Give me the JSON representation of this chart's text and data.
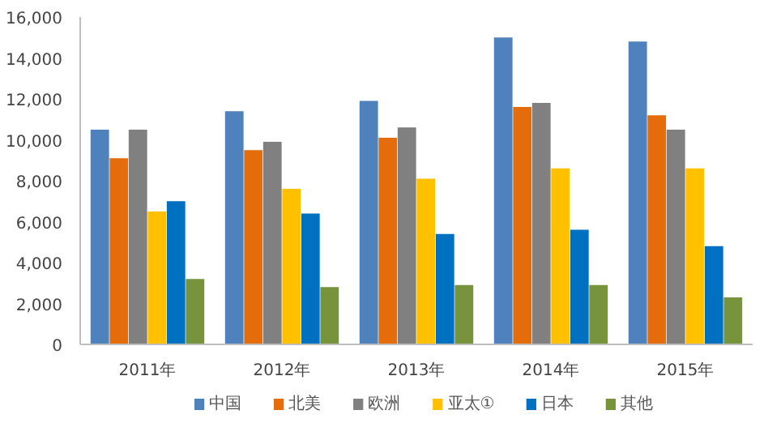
{
  "chart_data": {
    "type": "bar",
    "categories": [
      "2011年",
      "2012年",
      "2013年",
      "2014年",
      "2015年"
    ],
    "series": [
      {
        "name": "中国",
        "color": "#4f81bd",
        "values": [
          10500,
          11400,
          11900,
          15000,
          14800
        ]
      },
      {
        "name": "北美",
        "color": "#e46c0a",
        "values": [
          9100,
          9500,
          10100,
          11600,
          11200
        ]
      },
      {
        "name": "欧洲",
        "color": "#808080",
        "values": [
          10500,
          9900,
          10600,
          11800,
          10500
        ]
      },
      {
        "name": "亚太①",
        "color": "#ffc000",
        "values": [
          6500,
          7600,
          8100,
          8600,
          8600
        ]
      },
      {
        "name": "日本",
        "color": "#0070c0",
        "values": [
          7000,
          6400,
          5400,
          5600,
          4800
        ]
      },
      {
        "name": "其他",
        "color": "#77933c",
        "values": [
          3200,
          2800,
          2900,
          2900,
          2300
        ]
      }
    ],
    "ylim": [
      0,
      16000
    ],
    "yticks": [
      {
        "value": 0,
        "label": "0"
      },
      {
        "value": 2000,
        "label": "2,000"
      },
      {
        "value": 4000,
        "label": "4,000"
      },
      {
        "value": 6000,
        "label": "6,000"
      },
      {
        "value": 8000,
        "label": "8,000"
      },
      {
        "value": 10000,
        "label": "10,000"
      },
      {
        "value": 12000,
        "label": "12,000"
      },
      {
        "value": 14000,
        "label": "14,000"
      },
      {
        "value": 16000,
        "label": "16,000"
      }
    ],
    "grid": false,
    "legend": "bottom"
  }
}
